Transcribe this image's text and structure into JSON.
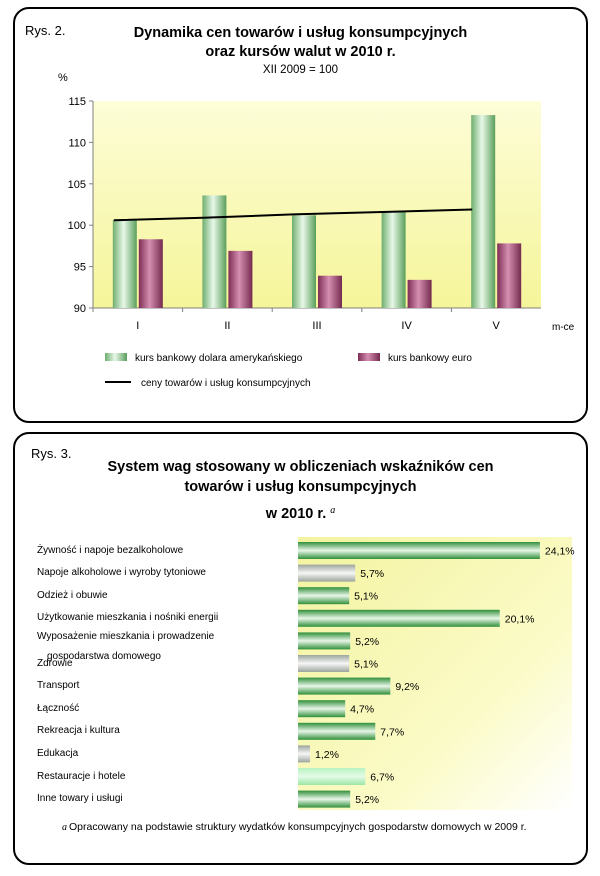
{
  "chart_data": [
    {
      "type": "bar",
      "label": "Rys. 2.",
      "title_line1": "Dynamika cen towarów i usług konsumpcyjnych",
      "title_line2": "oraz kursów walut w 2010 r.",
      "subtitle": "XII 2009 = 100",
      "ylabel": "%",
      "xlabel": "m-ce",
      "ylim": [
        90,
        115
      ],
      "yticks": [
        90,
        95,
        100,
        105,
        110,
        115
      ],
      "categories": [
        "I",
        "II",
        "III",
        "IV",
        "V"
      ],
      "series": [
        {
          "name": "kurs bankowy dolara amerykańskiego",
          "kind": "bar",
          "color": "#9fd39f",
          "values": [
            100.6,
            103.6,
            101.2,
            101.6,
            113.3
          ]
        },
        {
          "name": "kurs bankowy euro",
          "kind": "bar",
          "color": "#b14e7c",
          "values": [
            98.3,
            96.9,
            93.9,
            93.4,
            97.8
          ]
        },
        {
          "name": "ceny towarów i usług konsumpcyjnych",
          "kind": "line",
          "color": "#000000",
          "values": [
            100.6,
            100.9,
            101.3,
            101.6,
            101.9
          ]
        }
      ],
      "grid": false,
      "legend": "bottom"
    },
    {
      "type": "bar",
      "orientation": "horizontal",
      "label": "Rys. 3.",
      "title_line1": "System wag stosowany w obliczeniach wskaźników cen",
      "title_line2": "towarów i usług konsumpcyjnych",
      "title_line3": "w 2010 r.",
      "title_marker": "a",
      "categories": [
        "Żywność i napoje bezalkoholowe",
        "Napoje alkoholowe i wyroby tytoniowe",
        "Odzież i obuwie",
        "Użytkowanie mieszkania i nośniki energii",
        "Wyposażenie mieszkania i prowadzenie",
        "Zdrowie",
        "Transport",
        "Łączność",
        "Rekreacja i kultura",
        "Edukacja",
        "Restauracje i hotele",
        "Inne towary i usługi"
      ],
      "category_continuation": "gospodarstwa domowego",
      "values": [
        24.1,
        5.7,
        5.1,
        20.1,
        5.2,
        5.1,
        9.2,
        4.7,
        7.7,
        1.2,
        6.7,
        5.2
      ],
      "value_labels": [
        "24,1%",
        "5,7%",
        "5,1%",
        "20,1%",
        "5,2%",
        "5,1%",
        "9,2%",
        "4,7%",
        "7,7%",
        "1,2%",
        "6,7%",
        "5,2%"
      ],
      "bar_colors": [
        "#2f8f3a",
        "#a0a8a0",
        "#2f8f3a",
        "#2f8f3a",
        "#2f8f3a",
        "#a0a8a0",
        "#2f8f3a",
        "#2f8f3a",
        "#2f8f3a",
        "#a0a8a0",
        "#aef0b8",
        "#2f8f3a"
      ],
      "footnote_marker": "a",
      "footnote": "Opracowany na podstawie struktury wydatków konsumpcyjnych gospodarstw domowych w 2009 r."
    }
  ]
}
